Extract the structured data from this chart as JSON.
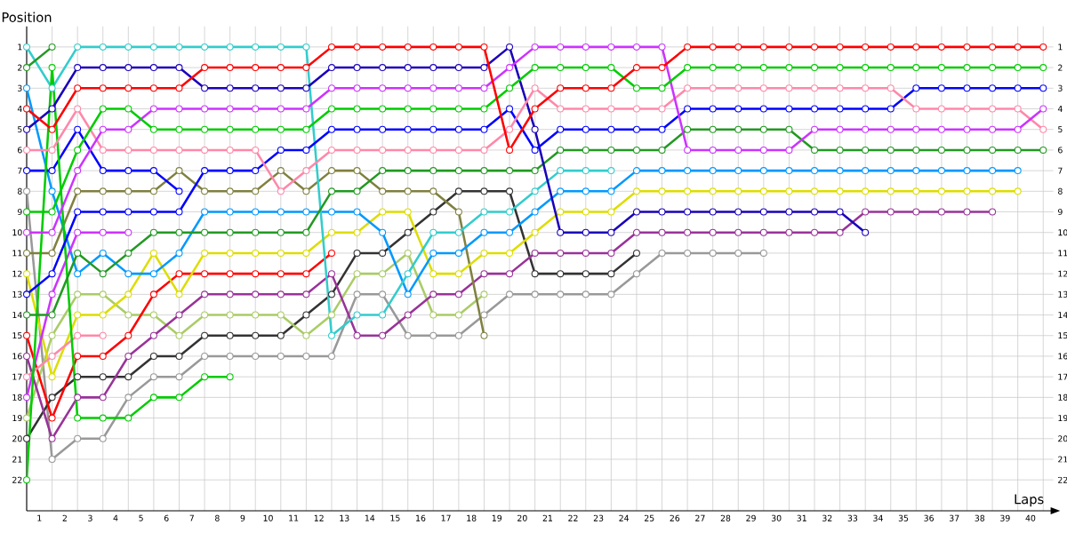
{
  "chart_data": {
    "type": "line",
    "xlabel": "Laps",
    "ylabel": "Position",
    "x": [
      0,
      1,
      2,
      3,
      4,
      5,
      6,
      7,
      8,
      9,
      10,
      11,
      12,
      13,
      14,
      15,
      16,
      17,
      18,
      19,
      20,
      21,
      22,
      23,
      24,
      25,
      26,
      27,
      28,
      29,
      30,
      31,
      32,
      33,
      34,
      35,
      36,
      37,
      38,
      39,
      40
    ],
    "xlim": [
      0,
      40.4
    ],
    "xticks": [
      {
        "value": 0.5,
        "label": "1"
      },
      {
        "value": 1.5,
        "label": "2"
      },
      {
        "value": 2.5,
        "label": "3"
      },
      {
        "value": 3.5,
        "label": "4"
      },
      {
        "value": 4.5,
        "label": "5"
      },
      {
        "value": 5.5,
        "label": "6"
      },
      {
        "value": 6.5,
        "label": "7"
      },
      {
        "value": 7.5,
        "label": "8"
      },
      {
        "value": 8.5,
        "label": "9"
      },
      {
        "value": 9.5,
        "label": "10"
      },
      {
        "value": 10.5,
        "label": "11"
      },
      {
        "value": 11.5,
        "label": "12"
      },
      {
        "value": 12.5,
        "label": "13"
      },
      {
        "value": 13.5,
        "label": "14"
      },
      {
        "value": 14.5,
        "label": "15"
      },
      {
        "value": 15.5,
        "label": "16"
      },
      {
        "value": 16.5,
        "label": "17"
      },
      {
        "value": 17.5,
        "label": "18"
      },
      {
        "value": 18.5,
        "label": "19"
      },
      {
        "value": 19.5,
        "label": "20"
      },
      {
        "value": 20.5,
        "label": "21"
      },
      {
        "value": 21.5,
        "label": "22"
      },
      {
        "value": 22.5,
        "label": "23"
      },
      {
        "value": 23.5,
        "label": "24"
      },
      {
        "value": 24.5,
        "label": "25"
      },
      {
        "value": 25.5,
        "label": "26"
      },
      {
        "value": 26.5,
        "label": "27"
      },
      {
        "value": 27.5,
        "label": "28"
      },
      {
        "value": 28.5,
        "label": "29"
      },
      {
        "value": 29.5,
        "label": "30"
      },
      {
        "value": 30.5,
        "label": "31"
      },
      {
        "value": 31.5,
        "label": "32"
      },
      {
        "value": 32.5,
        "label": "33"
      },
      {
        "value": 33.5,
        "label": "34"
      },
      {
        "value": 34.5,
        "label": "35"
      },
      {
        "value": 35.5,
        "label": "36"
      },
      {
        "value": 36.5,
        "label": "37"
      },
      {
        "value": 37.5,
        "label": "38"
      },
      {
        "value": 38.5,
        "label": "39"
      },
      {
        "value": 39.5,
        "label": "40"
      }
    ],
    "ylim": [
      23.5,
      0
    ],
    "yticks": [
      1,
      2,
      3,
      4,
      5,
      6,
      7,
      8,
      9,
      10,
      11,
      12,
      13,
      14,
      15,
      16,
      17,
      18,
      19,
      20,
      21,
      22
    ],
    "y2lim": [
      23.5,
      0
    ],
    "y2ticks": [
      1,
      2,
      3,
      4,
      5,
      6,
      7,
      8,
      9,
      10,
      11,
      12,
      13,
      14,
      15,
      16,
      17,
      18,
      19,
      20,
      21,
      22
    ],
    "grid": true,
    "marker": "circle",
    "line_style": "solid",
    "series": [
      {
        "color": "#999999",
        "values": [
          8,
          21,
          20,
          20,
          18,
          17,
          17,
          16,
          16,
          16,
          16,
          16,
          16,
          13,
          13,
          15,
          15,
          15,
          14,
          13,
          13,
          13,
          13,
          13,
          12,
          11,
          11,
          11,
          11,
          11,
          null,
          null,
          null,
          null,
          null,
          null,
          null,
          null,
          null,
          null,
          null
        ]
      },
      {
        "color": "#333333",
        "values": [
          20,
          18,
          17,
          17,
          17,
          16,
          16,
          15,
          15,
          15,
          15,
          14,
          13,
          11,
          11,
          10,
          9,
          8,
          8,
          8,
          12,
          12,
          12,
          12,
          11,
          null,
          null,
          null,
          null,
          null,
          null,
          null,
          null,
          null,
          null,
          null,
          null,
          null,
          null,
          null,
          null
        ]
      },
      {
        "color": "#aacc66",
        "values": [
          19,
          15,
          13,
          13,
          14,
          14,
          15,
          14,
          14,
          14,
          14,
          15,
          14,
          12,
          12,
          11,
          14,
          14,
          13,
          null,
          null,
          null,
          null,
          null,
          null,
          null,
          null,
          null,
          null,
          null,
          null,
          null,
          null,
          null,
          null,
          null,
          null,
          null,
          null,
          null,
          null
        ]
      },
      {
        "color": "#993399",
        "values": [
          16,
          20,
          18,
          18,
          16,
          15,
          14,
          13,
          13,
          13,
          13,
          13,
          12,
          15,
          15,
          14,
          13,
          13,
          12,
          12,
          11,
          11,
          11,
          11,
          10,
          10,
          10,
          10,
          10,
          10,
          10,
          10,
          10,
          9,
          9,
          9,
          9,
          9,
          9,
          null,
          null
        ]
      },
      {
        "color": "#ff0000",
        "values": [
          15,
          19,
          16,
          16,
          15,
          13,
          12,
          12,
          12,
          12,
          12,
          12,
          11,
          null,
          null,
          null,
          null,
          null,
          null,
          null,
          null,
          null,
          null,
          null,
          null,
          null,
          null,
          null,
          null,
          null,
          null,
          null,
          null,
          null,
          null,
          null,
          null,
          null,
          null,
          null,
          null
        ]
      },
      {
        "color": "#808040",
        "values": [
          11,
          11,
          8,
          8,
          8,
          8,
          7,
          8,
          8,
          8,
          7,
          8,
          7,
          7,
          8,
          8,
          8,
          9,
          15,
          null,
          null,
          null,
          null,
          null,
          null,
          null,
          null,
          null,
          null,
          null,
          null,
          null,
          null,
          null,
          null,
          null,
          null,
          null,
          null,
          null,
          null
        ]
      },
      {
        "color": "#dddd00",
        "values": [
          12,
          17,
          14,
          14,
          13,
          11,
          13,
          11,
          11,
          11,
          11,
          11,
          10,
          10,
          9,
          9,
          12,
          12,
          11,
          11,
          10,
          9,
          9,
          9,
          8,
          8,
          8,
          8,
          8,
          8,
          8,
          8,
          8,
          8,
          8,
          8,
          8,
          8,
          8,
          8,
          null
        ]
      },
      {
        "color": "#0099ff",
        "values": [
          3,
          8,
          12,
          11,
          12,
          12,
          11,
          9,
          9,
          9,
          9,
          9,
          9,
          9,
          10,
          13,
          11,
          11,
          10,
          10,
          9,
          8,
          8,
          8,
          7,
          7,
          7,
          7,
          7,
          7,
          7,
          7,
          7,
          7,
          7,
          7,
          7,
          7,
          7,
          7,
          null
        ]
      },
      {
        "color": "#0000ff",
        "values": [
          7,
          7,
          5,
          7,
          7,
          7,
          8,
          null,
          null,
          null,
          null,
          null,
          null,
          null,
          null,
          null,
          null,
          null,
          null,
          null,
          null,
          null,
          null,
          null,
          null,
          null,
          null,
          null,
          null,
          null,
          null,
          null,
          null,
          null,
          null,
          null,
          null,
          null,
          null,
          null,
          null
        ]
      },
      {
        "color": "#ff88aa",
        "values": [
          17,
          16,
          15,
          15,
          null,
          null,
          null,
          null,
          null,
          null,
          null,
          null,
          null,
          null,
          null,
          null,
          null,
          null,
          null,
          null,
          null,
          null,
          null,
          null,
          null,
          null,
          null,
          null,
          null,
          null,
          null,
          null,
          null,
          null,
          null,
          null,
          null,
          null,
          null,
          null,
          null
        ]
      },
      {
        "color": "#cc33ff",
        "values": [
          18,
          13,
          10,
          10,
          10,
          null,
          null,
          null,
          null,
          null,
          null,
          null,
          null,
          null,
          null,
          null,
          null,
          null,
          null,
          null,
          null,
          null,
          null,
          null,
          null,
          null,
          null,
          null,
          null,
          null,
          null,
          null,
          null,
          null,
          null,
          null,
          null,
          null,
          null,
          null,
          null
        ]
      },
      {
        "color": "#33cccc",
        "values": [
          1,
          3,
          1,
          1,
          1,
          1,
          1,
          1,
          1,
          1,
          1,
          1,
          15,
          14,
          14,
          12,
          10,
          10,
          9,
          9,
          8,
          7,
          7,
          7,
          null,
          null,
          null,
          null,
          null,
          null,
          null,
          null,
          null,
          null,
          null,
          null,
          null,
          null,
          null,
          null,
          null
        ]
      },
      {
        "color": "#229922",
        "values": [
          2,
          1,
          null,
          null,
          null,
          null,
          null,
          null,
          null,
          null,
          null,
          null,
          null,
          null,
          null,
          null,
          null,
          null,
          null,
          null,
          null,
          null,
          null,
          null,
          null,
          null,
          null,
          null,
          null,
          null,
          null,
          null,
          null,
          null,
          null,
          null,
          null,
          null,
          null,
          null,
          null
        ]
      },
      {
        "color": "#00cc00",
        "values": [
          22,
          2,
          19,
          19,
          19,
          18,
          18,
          17,
          17,
          null,
          null,
          null,
          null,
          null,
          null,
          null,
          null,
          null,
          null,
          null,
          null,
          null,
          null,
          null,
          null,
          null,
          null,
          null,
          null,
          null,
          null,
          null,
          null,
          null,
          null,
          null,
          null,
          null,
          null,
          null,
          null
        ]
      },
      {
        "color": "#229922",
        "values": [
          14,
          14,
          11,
          12,
          11,
          10,
          10,
          10,
          10,
          10,
          10,
          10,
          8,
          8,
          7,
          7,
          7,
          7,
          7,
          7,
          7,
          6,
          6,
          6,
          6,
          6,
          5,
          5,
          5,
          5,
          5,
          6,
          6,
          6,
          6,
          6,
          6,
          6,
          6,
          6,
          6
        ]
      },
      {
        "color": "#1a00bb",
        "values": [
          5,
          4,
          2,
          2,
          2,
          2,
          2,
          3,
          3,
          3,
          3,
          3,
          2,
          2,
          2,
          2,
          2,
          2,
          2,
          1,
          5,
          10,
          10,
          10,
          9,
          9,
          9,
          9,
          9,
          9,
          9,
          9,
          9,
          10,
          null,
          null,
          null,
          null,
          null,
          null,
          null
        ]
      },
      {
        "color": "#0000ff",
        "values": [
          13,
          12,
          9,
          9,
          9,
          9,
          9,
          7,
          7,
          7,
          6,
          6,
          5,
          5,
          5,
          5,
          5,
          5,
          5,
          4,
          6,
          5,
          5,
          5,
          5,
          5,
          4,
          4,
          4,
          4,
          4,
          4,
          4,
          4,
          4,
          3,
          3,
          3,
          3,
          3,
          3
        ]
      },
      {
        "color": "#ff88aa",
        "values": [
          6,
          6,
          4,
          6,
          6,
          6,
          6,
          6,
          6,
          6,
          8,
          7,
          6,
          6,
          6,
          6,
          6,
          6,
          6,
          5,
          3,
          4,
          4,
          4,
          4,
          4,
          3,
          3,
          3,
          3,
          3,
          3,
          3,
          3,
          3,
          4,
          4,
          4,
          4,
          4,
          5
        ]
      },
      {
        "color": "#cc33ff",
        "values": [
          10,
          10,
          7,
          5,
          5,
          4,
          4,
          4,
          4,
          4,
          4,
          4,
          3,
          3,
          3,
          3,
          3,
          3,
          3,
          2,
          1,
          1,
          1,
          1,
          1,
          1,
          6,
          6,
          6,
          6,
          6,
          5,
          5,
          5,
          5,
          5,
          5,
          5,
          5,
          5,
          4
        ]
      },
      {
        "color": "#00cc00",
        "values": [
          9,
          9,
          6,
          4,
          4,
          5,
          5,
          5,
          5,
          5,
          5,
          5,
          4,
          4,
          4,
          4,
          4,
          4,
          4,
          3,
          2,
          2,
          2,
          2,
          3,
          3,
          2,
          2,
          2,
          2,
          2,
          2,
          2,
          2,
          2,
          2,
          2,
          2,
          2,
          2,
          2
        ]
      },
      {
        "color": "#ff0000",
        "values": [
          4,
          5,
          3,
          3,
          3,
          3,
          3,
          2,
          2,
          2,
          2,
          2,
          1,
          1,
          1,
          1,
          1,
          1,
          1,
          6,
          4,
          3,
          3,
          3,
          2,
          2,
          1,
          1,
          1,
          1,
          1,
          1,
          1,
          1,
          1,
          1,
          1,
          1,
          1,
          1,
          1
        ]
      }
    ]
  }
}
